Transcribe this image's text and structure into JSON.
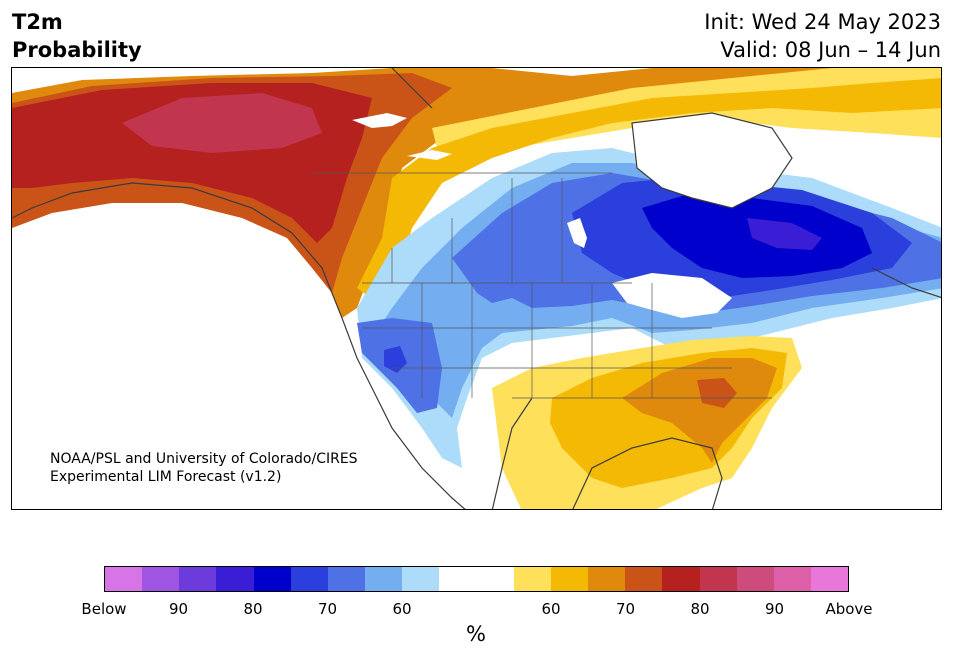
{
  "header": {
    "title_line1": "T2m",
    "title_line2": "Probability",
    "init_line": "Init: Wed 24 May 2023",
    "valid_line": "Valid: 08 Jun – 14 Jun"
  },
  "credit": {
    "line1": "NOAA/PSL and University of Colorado/CIRES",
    "line2": "Experimental LIM Forecast (v1.2)"
  },
  "colors": {
    "below_100": "#d774e7",
    "below_95": "#9f55e1",
    "below_90": "#6d3adb",
    "below_85": "#3a1ed6",
    "below_80": "#0000cd",
    "below_75": "#2a3fdb",
    "below_70": "#4e72e6",
    "below_65": "#74aef0",
    "below_60": "#acdcfa",
    "neutral": "#ffffff",
    "above_60": "#fee05a",
    "above_65": "#f3b905",
    "above_70": "#e08a0d",
    "above_75": "#ca5418",
    "above_80": "#b4211f",
    "above_85": "#c2354f",
    "above_90": "#ce4c7b",
    "above_95": "#dc5fa8",
    "above_100": "#e877d9",
    "coast": "#3b3b3b"
  },
  "colorbar": {
    "swatches": [
      "#d774e7",
      "#9f55e1",
      "#6d3adb",
      "#3a1ed6",
      "#0000cd",
      "#2a3fdb",
      "#4e72e6",
      "#74aef0",
      "#acdcfa",
      "#ffffff",
      "#ffffff",
      "#fee05a",
      "#f3b905",
      "#e08a0d",
      "#ca5418",
      "#b4211f",
      "#c2354f",
      "#ce4c7b",
      "#dc5fa8",
      "#e877d9"
    ],
    "tick_labels": [
      "Below",
      "90",
      "80",
      "70",
      "60",
      "60",
      "70",
      "80",
      "90",
      "Above"
    ],
    "unit": "%"
  }
}
